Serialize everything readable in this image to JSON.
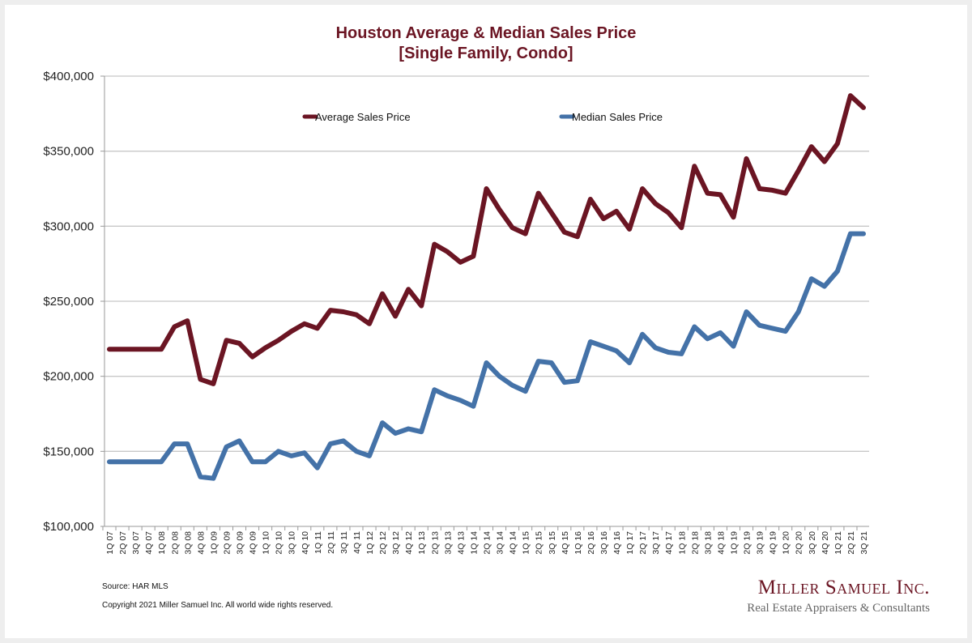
{
  "title_line1": "Houston Average & Median Sales Price",
  "title_line2": "[Single Family, Condo]",
  "footer": {
    "source": "Source: HAR MLS",
    "copyright": "Copyright 2021 Miller Samuel Inc.  All world wide rights reserved."
  },
  "brand": {
    "name": "Miller Samuel Inc.",
    "tagline": "Real Estate Appraisers & Consultants"
  },
  "colors": {
    "average": "#6b1523",
    "median": "#4472a8",
    "title": "#6b1523",
    "grid": "#c8c8c8"
  },
  "chart_data": {
    "type": "line",
    "title": "Houston Average & Median Sales Price [Single Family, Condo]",
    "xlabel": "",
    "ylabel": "",
    "ylim": [
      100000,
      400000
    ],
    "yticks": [
      100000,
      150000,
      200000,
      250000,
      300000,
      350000,
      400000
    ],
    "ytick_labels": [
      "$100,000",
      "$150,000",
      "$200,000",
      "$250,000",
      "$300,000",
      "$350,000",
      "$400,000"
    ],
    "grid": true,
    "legend_position": "top",
    "categories": [
      "1Q 07",
      "2Q 07",
      "3Q 07",
      "4Q 07",
      "1Q 08",
      "2Q 08",
      "3Q 08",
      "4Q 08",
      "1Q 09",
      "2Q 09",
      "3Q 09",
      "4Q 09",
      "1Q 10",
      "2Q 10",
      "3Q 10",
      "4Q 10",
      "1Q 11",
      "2Q 11",
      "3Q 11",
      "4Q 11",
      "1Q 12",
      "2Q 12",
      "3Q 12",
      "4Q 12",
      "1Q 13",
      "2Q 13",
      "3Q 13",
      "4Q 13",
      "1Q 14",
      "2Q 14",
      "3Q 14",
      "4Q 14",
      "1Q 15",
      "2Q 15",
      "3Q 15",
      "4Q 15",
      "1Q 16",
      "2Q 16",
      "3Q 16",
      "4Q 16",
      "1Q 17",
      "2Q 17",
      "3Q 17",
      "4Q 17",
      "1Q 18",
      "2Q 18",
      "3Q 18",
      "4Q 18",
      "1Q 19",
      "2Q 19",
      "3Q 19",
      "4Q 19",
      "1Q 20",
      "2Q 20",
      "3Q 20",
      "4Q 20",
      "1Q 21",
      "2Q 21",
      "3Q 21"
    ],
    "series": [
      {
        "name": "Average Sales Price",
        "color": "#6b1523",
        "values": [
          218000,
          218000,
          218000,
          218000,
          218000,
          233000,
          237000,
          198000,
          195000,
          224000,
          222000,
          213000,
          219000,
          224000,
          230000,
          235000,
          232000,
          244000,
          243000,
          241000,
          235000,
          255000,
          240000,
          258000,
          247000,
          288000,
          283000,
          276000,
          280000,
          325000,
          311000,
          299000,
          295000,
          322000,
          309000,
          296000,
          293000,
          318000,
          305000,
          310000,
          298000,
          325000,
          315000,
          309000,
          299000,
          340000,
          322000,
          321000,
          306000,
          345000,
          325000,
          324000,
          322000,
          337000,
          353000,
          343000,
          355000,
          387000,
          379000
        ]
      },
      {
        "name": "Median Sales Price",
        "color": "#4472a8",
        "values": [
          143000,
          143000,
          143000,
          143000,
          143000,
          155000,
          155000,
          133000,
          132000,
          153000,
          157000,
          143000,
          143000,
          150000,
          147000,
          149000,
          139000,
          155000,
          157000,
          150000,
          147000,
          169000,
          162000,
          165000,
          163000,
          191000,
          187000,
          184000,
          180000,
          209000,
          200000,
          194000,
          190000,
          210000,
          209000,
          196000,
          197000,
          223000,
          220000,
          217000,
          209000,
          228000,
          219000,
          216000,
          215000,
          233000,
          225000,
          229000,
          220000,
          243000,
          234000,
          232000,
          230000,
          243000,
          265000,
          260000,
          270000,
          295000,
          295000
        ]
      }
    ]
  }
}
